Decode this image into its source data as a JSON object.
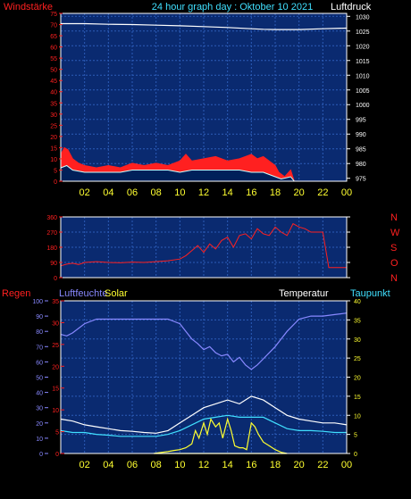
{
  "header": {
    "left": "Windstärke",
    "title": "24 hour graph day : Oktober 10 2021",
    "right": "Luftdruck"
  },
  "colors": {
    "background": "#000000",
    "plot_bg": "#0a2a70",
    "frame": "#ffffff",
    "grid": "#2c5cb8",
    "red": "#ff2020",
    "yellow": "#ffff30",
    "cyan": "#40e0ff",
    "white": "#ffffff",
    "light_blue": "#8888ff",
    "pale_cyan": "#c8ffff",
    "dark_fill": "#00205a"
  },
  "chart_data": [
    {
      "id": "wind",
      "type": "area",
      "left_axis_title": "Windstärke",
      "right_axis_title": "Luftdruck",
      "x_tick_labels": [
        "02",
        "04",
        "06",
        "08",
        "10",
        "12",
        "14",
        "16",
        "18",
        "20",
        "22",
        "00"
      ],
      "left_ticks": [
        "0",
        "5",
        "10",
        "15",
        "20",
        "25",
        "30",
        "35",
        "40",
        "45",
        "50",
        "55",
        "60",
        "65",
        "70",
        "75"
      ],
      "right_ticks": [
        "975",
        "980",
        "985",
        "990",
        "995",
        "1000",
        "1005",
        "1010",
        "1015",
        "1020",
        "1025",
        "1030"
      ],
      "ylim_left": [
        0,
        75
      ],
      "ylim_right": [
        974,
        1031
      ],
      "series": [
        {
          "role": "gust",
          "color": "#ff2020",
          "x": [
            0,
            0.3,
            0.6,
            1,
            1.5,
            2,
            3,
            4,
            5,
            6,
            7,
            8,
            9,
            10,
            10.5,
            11,
            12,
            13,
            14,
            15,
            16,
            16.5,
            17,
            17.5,
            18,
            18.3,
            18.8,
            19.3,
            19.6
          ],
          "values": [
            12,
            15,
            14,
            10,
            8,
            7,
            6,
            7,
            6,
            8,
            7,
            8,
            7,
            9,
            12,
            9,
            10,
            11,
            9,
            10,
            12,
            10,
            11,
            9,
            7,
            4,
            2,
            5,
            0
          ]
        },
        {
          "role": "wind",
          "color": "#40e0ff",
          "x": [
            0,
            0.5,
            1,
            2,
            3,
            4,
            5,
            6,
            7,
            8,
            9,
            10,
            11,
            12,
            13,
            14,
            15,
            16,
            17,
            17.5,
            18,
            18.5,
            19.3,
            19.6
          ],
          "values": [
            6,
            7,
            5,
            4,
            4,
            4,
            4,
            5,
            5,
            5,
            5,
            4,
            5,
            5,
            5,
            5,
            5,
            4,
            4,
            3,
            2,
            1,
            2,
            0
          ]
        },
        {
          "role": "pressure",
          "color": "#ffffff",
          "x": [
            0,
            2,
            4,
            6,
            8,
            10,
            12,
            14,
            16,
            17,
            18,
            20,
            22,
            24
          ],
          "values": [
            1027.5,
            1027.5,
            1027.3,
            1027.2,
            1027,
            1026.8,
            1026.5,
            1026.2,
            1025.8,
            1025.6,
            1025.5,
            1025.5,
            1025.8,
            1026
          ]
        }
      ]
    },
    {
      "id": "direction",
      "type": "line",
      "left_ticks": [
        "0",
        "90",
        "180",
        "270",
        "360"
      ],
      "compass_labels": [
        "N",
        "W",
        "S",
        "O",
        "N"
      ],
      "ylim": [
        0,
        360
      ],
      "x": [
        0,
        0.5,
        1,
        1.5,
        2,
        3,
        4,
        5,
        6,
        7,
        8,
        9,
        10,
        10.5,
        11,
        11.5,
        12,
        12.5,
        13,
        13.5,
        14,
        14.5,
        15,
        15.5,
        16,
        16.5,
        17,
        17.5,
        18,
        18.5,
        19,
        19.5,
        20,
        20.5,
        21,
        21.5,
        22,
        22.5,
        23,
        24
      ],
      "values": [
        70,
        80,
        85,
        78,
        90,
        95,
        90,
        88,
        92,
        90,
        95,
        100,
        110,
        130,
        160,
        190,
        150,
        200,
        170,
        220,
        240,
        180,
        250,
        260,
        230,
        290,
        260,
        250,
        300,
        270,
        250,
        320,
        300,
        290,
        270,
        270,
        270,
        60,
        60,
        60
      ],
      "color": "#ff2020"
    },
    {
      "id": "weather",
      "type": "line",
      "left_axis_title": "Regen",
      "left_axis_title2": "Luftfeuchte",
      "solar_label": "Solar",
      "temp_label": "Temperatur",
      "dew_label": "Taupunkt",
      "humidity_ticks": [
        "0",
        "10",
        "20",
        "30",
        "40",
        "50",
        "60",
        "70",
        "80",
        "90",
        "100"
      ],
      "rain_ticks": [
        "0",
        "5",
        "10",
        "15",
        "20",
        "25",
        "30",
        "35"
      ],
      "right_ticks": [
        "0",
        "5",
        "10",
        "15",
        "20",
        "25",
        "30",
        "35",
        "40"
      ],
      "ylim_right": [
        0,
        40
      ],
      "series": [
        {
          "name": "Luftfeuchte",
          "color": "#8888ff",
          "x": [
            0,
            0.5,
            1,
            2,
            3,
            4,
            5,
            6,
            7,
            8,
            9,
            10,
            10.5,
            11,
            11.5,
            12,
            12.5,
            13,
            13.5,
            14,
            14.5,
            15,
            15.5,
            16,
            16.5,
            17,
            18,
            19,
            20,
            21,
            22,
            23,
            24
          ],
          "values": [
            78,
            77,
            79,
            85,
            88,
            88,
            88,
            88,
            88,
            88,
            88,
            85,
            80,
            75,
            72,
            68,
            70,
            66,
            64,
            65,
            60,
            63,
            58,
            55,
            58,
            62,
            70,
            80,
            88,
            90,
            90,
            91,
            92
          ]
        },
        {
          "name": "Temperatur",
          "color": "#ffffff",
          "x": [
            0,
            1,
            2,
            3,
            4,
            5,
            6,
            7,
            8,
            9,
            10,
            11,
            12,
            13,
            14,
            15,
            16,
            17,
            18,
            19,
            20,
            21,
            22,
            23,
            24
          ],
          "values": [
            9,
            8.5,
            7.5,
            7,
            6.5,
            6,
            5.8,
            5.5,
            5.3,
            6,
            8,
            10,
            12,
            13,
            14,
            13,
            15,
            14,
            12,
            10,
            9,
            8.5,
            8,
            8,
            7.5
          ]
        },
        {
          "name": "Taupunkt",
          "color": "#40e0ff",
          "x": [
            0,
            1,
            2,
            3,
            4,
            5,
            6,
            7,
            8,
            9,
            10,
            11,
            12,
            13,
            14,
            15,
            16,
            17,
            18,
            19,
            20,
            21,
            22,
            23,
            24
          ],
          "values": [
            6,
            5.5,
            5.5,
            5,
            4.8,
            4.5,
            4.5,
            4.5,
            4.5,
            5,
            6,
            7.5,
            9,
            9.5,
            10,
            9.5,
            9.5,
            9.5,
            8,
            6.5,
            6,
            6,
            5.8,
            5.5,
            5.5
          ]
        },
        {
          "name": "Solar",
          "color": "#ffff30",
          "x": [
            7.8,
            8.5,
            9,
            9.5,
            10,
            10.5,
            11,
            11.3,
            11.6,
            12,
            12.3,
            12.6,
            13,
            13.3,
            13.6,
            14,
            14.3,
            14.6,
            15,
            15.3,
            15.6,
            16,
            16.3,
            16.6,
            17,
            17.5,
            18,
            18.5,
            19
          ],
          "values": [
            0,
            0.3,
            0.5,
            0.8,
            1,
            1.5,
            2.5,
            6,
            4,
            8,
            5,
            9,
            7,
            8,
            4,
            9,
            6,
            2,
            1.5,
            1.5,
            1,
            8,
            7,
            5,
            3,
            2,
            1,
            0.3,
            0
          ]
        }
      ]
    }
  ]
}
